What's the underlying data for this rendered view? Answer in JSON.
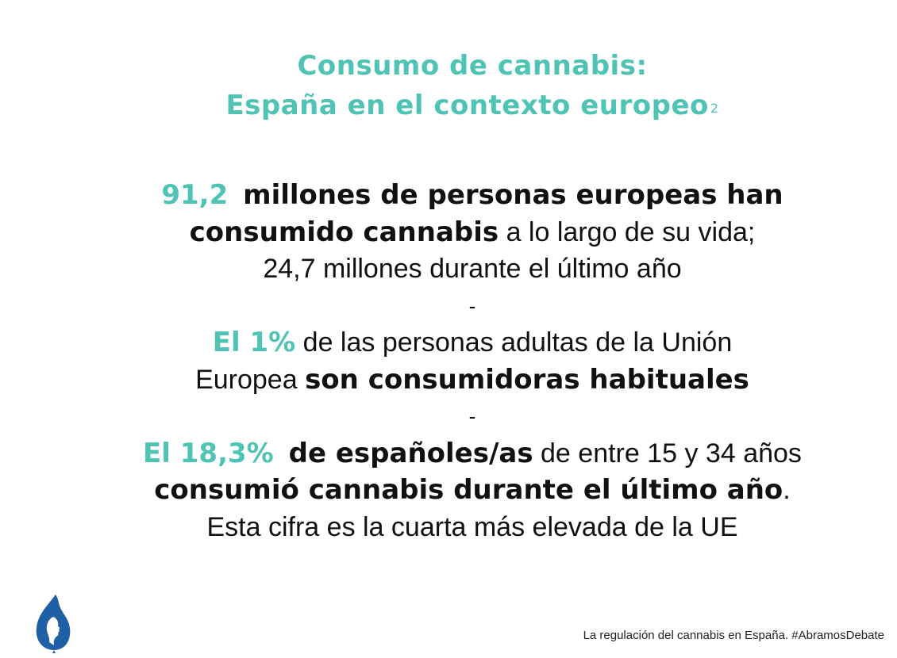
{
  "title": {
    "line1": "Consumo de cannabis:",
    "line2": "España en el contexto europeo",
    "footnote_mark": "2"
  },
  "stats": {
    "s1": {
      "highlight": "91,2",
      "bold_a": "millones de personas europeas han",
      "bold_b": "consumido cannabis",
      "tail": "a lo largo de su vida;",
      "line3": "24,7 millones durante el último año"
    },
    "separator_1": "-",
    "s2": {
      "highlight": "El 1%",
      "text_a": "de las personas adultas de la Unión",
      "text_b": "Europea",
      "bold": "son consumidoras habituales"
    },
    "separator_2": "-",
    "s3": {
      "highlight": "El 18,3%",
      "bold_a": "de españoles/as",
      "text_a": "de entre 15 y 34 años",
      "bold_b": "consumió cannabis durante el último año",
      "period": ".",
      "line3": "Esta cifra es la cuarta más elevada de la UE"
    }
  },
  "footer": {
    "text": "La regulación del cannabis en España.  #AbramosDebate"
  },
  "colors": {
    "accent": "#4fc3b4",
    "text": "#111111",
    "logo": "#1f5fa6"
  },
  "icons": {
    "logo": "leaf-head-logo-icon"
  }
}
